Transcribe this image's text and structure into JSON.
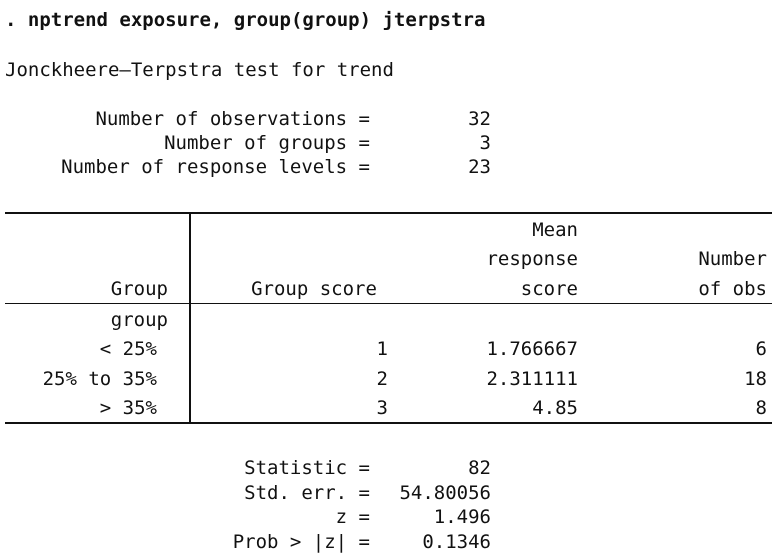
{
  "command": ". nptrend exposure, group(group) jterpstra",
  "test_title": "Jonckheere–Terpstra test for trend",
  "summary": {
    "observations_label": "Number of observations =",
    "observations_value": "32",
    "groups_label": "Number of groups =",
    "groups_value": "3",
    "levels_label": "Number of response levels =",
    "levels_value": "23"
  },
  "table": {
    "headers": {
      "group": "Group",
      "group_score": "Group score",
      "mean_line1": "Mean",
      "mean_line2": "response",
      "mean_line3": "score",
      "nobs_line1": "Number",
      "nobs_line2": "of obs"
    },
    "variable_label": "group",
    "rows": [
      {
        "group": "< 25%",
        "score": "1",
        "mean": "1.766667",
        "nobs": "6"
      },
      {
        "group": "25% to 35%",
        "score": "2",
        "mean": "2.311111",
        "nobs": "18"
      },
      {
        "group": "> 35%",
        "score": "3",
        "mean": "4.85",
        "nobs": "8"
      }
    ]
  },
  "results": {
    "statistic_label": "Statistic =",
    "statistic_value": "82",
    "stderr_label": "Std. err. =",
    "stderr_value": "54.80056",
    "z_label": "z =",
    "z_value": "1.496",
    "prob_label": "Prob > |z| =",
    "prob_value": "0.1346"
  }
}
